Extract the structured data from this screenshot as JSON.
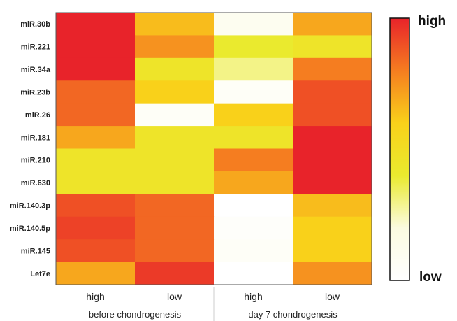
{
  "chart_data": {
    "type": "heatmap",
    "rows": [
      "miR.30b",
      "miR.221",
      "miR.34a",
      "miR.23b",
      "miR.26",
      "miR.181",
      "miR.210",
      "miR.630",
      "miR.140.3p",
      "miR.140.5p",
      "miR.145",
      "Let7e"
    ],
    "columns": [
      "high",
      "low",
      "high",
      "low"
    ],
    "groups": [
      {
        "label": "before chondrogenesis",
        "columns": [
          0,
          1
        ]
      },
      {
        "label": "day 7 chondrogenesis",
        "columns": [
          2,
          3
        ]
      }
    ],
    "values": [
      [
        1.0,
        0.65,
        0.1,
        0.7
      ],
      [
        1.0,
        0.75,
        0.4,
        0.45
      ],
      [
        1.0,
        0.45,
        0.3,
        0.8
      ],
      [
        0.85,
        0.6,
        0.05,
        0.9
      ],
      [
        0.85,
        0.05,
        0.6,
        0.9
      ],
      [
        0.7,
        0.45,
        0.45,
        1.0
      ],
      [
        0.45,
        0.45,
        0.8,
        1.0
      ],
      [
        0.45,
        0.45,
        0.7,
        1.0
      ],
      [
        0.9,
        0.85,
        0.0,
        0.65
      ],
      [
        0.93,
        0.85,
        0.03,
        0.6
      ],
      [
        0.9,
        0.85,
        0.05,
        0.6
      ],
      [
        0.7,
        0.95,
        0.0,
        0.75
      ]
    ],
    "colorbar": {
      "high_label": "high",
      "low_label": "low",
      "colors": [
        "#e8232a",
        "#f57d20",
        "#f9d11a",
        "#eaea2e",
        "#fbfbe0",
        "#ffffff"
      ]
    }
  }
}
